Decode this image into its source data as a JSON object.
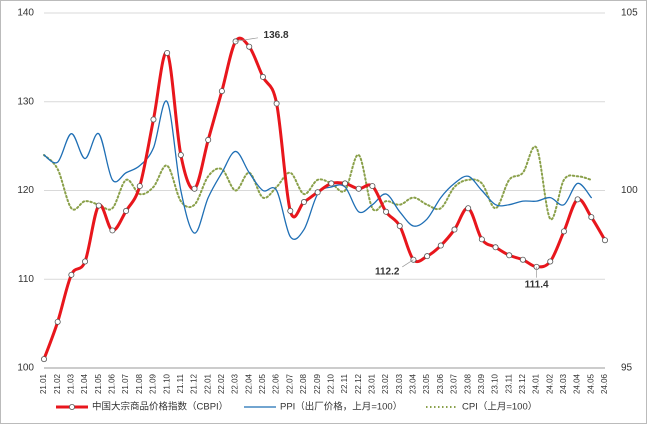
{
  "chart_data": {
    "type": "line",
    "categories": [
      "21.01",
      "21.02",
      "21.03",
      "21.04",
      "21.05",
      "21.06",
      "21.07",
      "21.08",
      "21.09",
      "21.10",
      "21.11",
      "21.12",
      "22.01",
      "22.02",
      "22.03",
      "22.04",
      "22.05",
      "22.06",
      "22.07",
      "22.08",
      "22.09",
      "22.10",
      "22.11",
      "22.12",
      "23.01",
      "23.02",
      "23.03",
      "23.04",
      "23.05",
      "23.06",
      "23.07",
      "23.08",
      "23.09",
      "23.10",
      "23.11",
      "23.12",
      "24.01",
      "24.02",
      "24.03",
      "24.04",
      "24.05",
      "24.06"
    ],
    "series": [
      {
        "name": "中国大宗商品价格指数（CBPI）",
        "color": "#e8161c",
        "axis": "y",
        "values": [
          101,
          105.2,
          110.5,
          112,
          118.3,
          115.5,
          117.7,
          120.5,
          128,
          135.5,
          124,
          120.2,
          125.7,
          131.2,
          136.8,
          136.2,
          132.8,
          129.8,
          117.7,
          118.7,
          119.8,
          120.8,
          120.8,
          120.2,
          120.5,
          117.6,
          116,
          112.2,
          112.6,
          113.8,
          115.6,
          118,
          114.5,
          113.6,
          112.7,
          112.2,
          111.4,
          112,
          115.4,
          119,
          117,
          114.4
        ]
      },
      {
        "name": "PPI（出厂价格，上月=100）",
        "color": "#1f6fb5",
        "axis": "y2",
        "values": [
          101.0,
          100.8,
          101.6,
          100.9,
          101.6,
          100.3,
          100.5,
          100.7,
          101.2,
          102.5,
          100.0,
          98.8,
          99.8,
          100.5,
          101.1,
          100.5,
          100.0,
          100.0,
          98.7,
          98.9,
          99.9,
          100.1,
          100.1,
          99.4,
          99.6,
          99.9,
          99.4,
          99.0,
          99.2,
          99.8,
          100.2,
          100.4,
          100.0,
          99.6,
          99.6,
          99.7,
          99.7,
          99.8,
          99.6,
          100.2,
          99.8,
          null
        ]
      },
      {
        "name": "CPI（上月=100）",
        "color": "#8aa04a",
        "axis": "y2",
        "values": [
          101.0,
          100.6,
          99.5,
          99.7,
          99.6,
          99.5,
          100.3,
          99.9,
          100.1,
          100.7,
          99.7,
          99.6,
          100.4,
          100.6,
          100.0,
          100.5,
          99.8,
          100.1,
          100.5,
          99.9,
          100.3,
          100.2,
          100.0,
          101.0,
          99.5,
          99.7,
          99.6,
          99.8,
          99.6,
          99.5,
          100.1,
          100.3,
          100.2,
          99.5,
          100.3,
          100.5,
          101.2,
          99.2,
          100.3,
          100.4,
          100.3,
          null
        ]
      }
    ],
    "ylim": [
      100,
      140
    ],
    "yticks": [
      100,
      110,
      120,
      130,
      140
    ],
    "y2lim": [
      95,
      105
    ],
    "y2ticks": [
      95,
      100,
      105
    ],
    "grid": true,
    "legend": "bottom",
    "annotations": [
      {
        "text": "136.8",
        "x": "22.03"
      },
      {
        "text": "112.2",
        "x": "23.04"
      },
      {
        "text": "111.4",
        "x": "24.01"
      }
    ]
  }
}
